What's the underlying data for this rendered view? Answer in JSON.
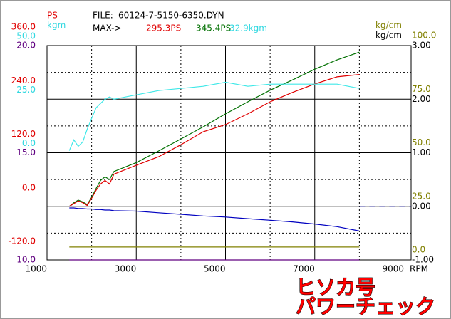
{
  "chart_data": {
    "type": "line",
    "file_label": "FILE:",
    "file": "60124-7-5150-6350.DYN",
    "max_label": "MAX->",
    "max_values": [
      {
        "text": "295.3PS",
        "color": "#e00000"
      },
      {
        "text": "345.4PS",
        "color": "#007000"
      },
      {
        "text": "32.9kgm",
        "color": "#30d8e0"
      }
    ],
    "x_label": "RPM",
    "xlim": [
      1000,
      9000
    ],
    "xticks": [
      1000,
      3000,
      5000,
      7000,
      9000
    ],
    "x": [
      1500,
      1600,
      1700,
      1800,
      1900,
      2000,
      2100,
      2200,
      2300,
      2400,
      2500,
      3000,
      3500,
      4000,
      4500,
      5000,
      5500,
      6000,
      6500,
      7000,
      7500,
      8000
    ],
    "axes": [
      {
        "title": "PS",
        "side": "left",
        "color": "#e00000",
        "lim": [
          -120,
          360
        ],
        "ticks": [
          {
            "value": 360,
            "label": "360.0"
          },
          {
            "value": 240,
            "label": "240.0"
          },
          {
            "value": 120,
            "label": "120.0"
          },
          {
            "value": 0,
            "label": "0.0"
          },
          {
            "value": -120,
            "label": "-120.0"
          }
        ],
        "series": [
          {
            "color": "#007000",
            "values": [
              0,
              8,
              14,
              10,
              4,
              20,
              40,
              58,
              66,
              60,
              78,
              98,
              124,
              151,
              178,
              207,
              234,
              260,
              283,
              307,
              328,
              345.4
            ]
          },
          {
            "color": "#e00000",
            "values": [
              0,
              6,
              12,
              8,
              2,
              18,
              36,
              50,
              58,
              50,
              72,
              92,
              111,
              138,
              167,
              183,
              207,
              234,
              255,
              274,
              290,
              295.3
            ]
          }
        ]
      },
      {
        "title": "kgm",
        "side": "left",
        "color": "#30d8e0",
        "lim": [
          -50,
          50
        ],
        "ticks": [
          {
            "value": 50,
            "label": "50.0"
          },
          {
            "value": 25,
            "label": "25.0"
          },
          {
            "value": 0,
            "label": "0.0"
          }
        ],
        "series": [
          {
            "color": "#40e8e8",
            "values": [
              1,
              6,
              3,
              5,
              11,
              16,
              21,
              23,
              25,
              26,
              25,
              27,
              29,
              30,
              31,
              32.9,
              31,
              32,
              32,
              32,
              32,
              30
            ]
          }
        ]
      },
      {
        "side": "left",
        "color": "#600080",
        "lim": [
          10,
          20
        ],
        "ticks": [
          {
            "value": 20,
            "label": "20.0"
          },
          17.5,
          {
            "value": 15,
            "label": "15.0"
          },
          12.5,
          {
            "value": 10,
            "label": "10.0"
          }
        ],
        "series": [
          {
            "color": "#600080",
            "values": [
              10,
              10,
              10,
              10,
              10,
              10,
              10,
              10,
              10,
              10,
              10,
              10,
              10,
              10,
              10,
              10,
              10,
              10,
              10,
              10,
              10,
              10
            ]
          }
        ]
      },
      {
        "title": "kg/cm",
        "side": "right",
        "color": "#808000",
        "lim": [
          0,
          100
        ],
        "ticks": [
          {
            "value": 100,
            "label": "100.0"
          },
          {
            "value": 75,
            "label": "75.0"
          },
          {
            "value": 50,
            "label": "50.0"
          },
          {
            "value": 25,
            "label": "25.0"
          },
          {
            "value": 0,
            "label": "0.0"
          }
        ],
        "series": [
          {
            "color": "#808000",
            "values": [
              6,
              6,
              6,
              6,
              6,
              6,
              6,
              6,
              6,
              6,
              6,
              6,
              6,
              6,
              6,
              6,
              6,
              6,
              6,
              6,
              6,
              6
            ]
          }
        ]
      },
      {
        "title": "kg/cm",
        "side": "right",
        "color": "#000000",
        "lim": [
          -1,
          3
        ],
        "grid": true,
        "ticks": [
          {
            "value": 3,
            "label": "3.00"
          },
          {
            "value": 2,
            "label": "2.00"
          },
          {
            "value": 1,
            "label": "1.00"
          },
          {
            "value": 0,
            "label": "0.00"
          },
          {
            "value": -1,
            "label": "-1.00"
          }
        ],
        "series": [
          {
            "color": "#0000c0",
            "values": [
              -0.03,
              -0.03,
              -0.04,
              -0.04,
              -0.05,
              -0.05,
              -0.06,
              -0.06,
              -0.07,
              -0.07,
              -0.08,
              -0.09,
              -0.12,
              -0.15,
              -0.18,
              -0.2,
              -0.23,
              -0.26,
              -0.29,
              -0.33,
              -0.38,
              -0.46
            ]
          }
        ]
      }
    ],
    "stamp": [
      "ヒソカ号",
      "パワーチェック"
    ]
  }
}
